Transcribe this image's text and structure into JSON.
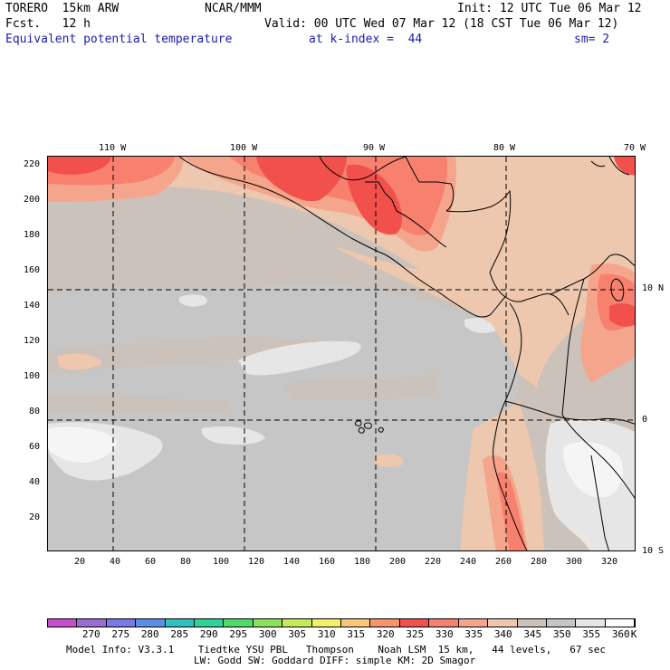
{
  "header": {
    "model_line": "TORERO  15km ARW",
    "center": "NCAR/MMM",
    "init": "Init: 12 UTC Tue 06 Mar 12",
    "fcst_line": "Fcst.   12 h",
    "valid": "Valid: 00 UTC Wed 07 Mar 12 (18 CST Tue 06 Mar 12)",
    "field": "Equivalent potential temperature",
    "level": "at k-index =  44",
    "smoothing": "sm= 2"
  },
  "map": {
    "lon_labels": [
      "110 W",
      "100 W",
      "90 W",
      "80 W",
      "70 W"
    ],
    "lat_labels": [
      "10 N",
      "0",
      "10 S"
    ],
    "x_ticks": [
      "20",
      "40",
      "60",
      "80",
      "100",
      "120",
      "140",
      "160",
      "180",
      "200",
      "220",
      "240",
      "260",
      "280",
      "300",
      "320"
    ],
    "y_ticks": [
      "220",
      "200",
      "180",
      "160",
      "140",
      "120",
      "100",
      "80",
      "60",
      "40",
      "20"
    ],
    "fill_colors": {
      "c330": "#f2504b",
      "c335": "#f8806f",
      "c340": "#f5a58b",
      "c345": "#edc7ae",
      "c350": "#cbc2bb",
      "c355": "#c6c6c6",
      "c360": "#e6e6e6",
      "c365": "#f5f5f5"
    }
  },
  "colorbar": {
    "labels": [
      "270",
      "275",
      "280",
      "285",
      "290",
      "295",
      "300",
      "305",
      "310",
      "315",
      "320",
      "325",
      "330",
      "335",
      "340",
      "345",
      "350",
      "355",
      "360"
    ],
    "unit": "K",
    "colors": [
      "#c64fcc",
      "#9a6bd0",
      "#7a79e8",
      "#5b8fe6",
      "#2fc0c0",
      "#2ed39a",
      "#4fdb6a",
      "#8ce25a",
      "#c6ea5a",
      "#f3f06a",
      "#f8c878",
      "#f6946e",
      "#f2504b",
      "#f8806f",
      "#f5a58b",
      "#edc7ae",
      "#cbc2bb",
      "#c6c6c6",
      "#e6e6e6",
      "#ffffff"
    ]
  },
  "footer": {
    "line1": "Model Info: V3.3.1    Tiedtke YSU PBL   Thompson    Noah LSM  15 km,   44 levels,   67 sec",
    "line2": "LW: Godd SW: Goddard DIFF: simple KM: 2D Smagor"
  }
}
